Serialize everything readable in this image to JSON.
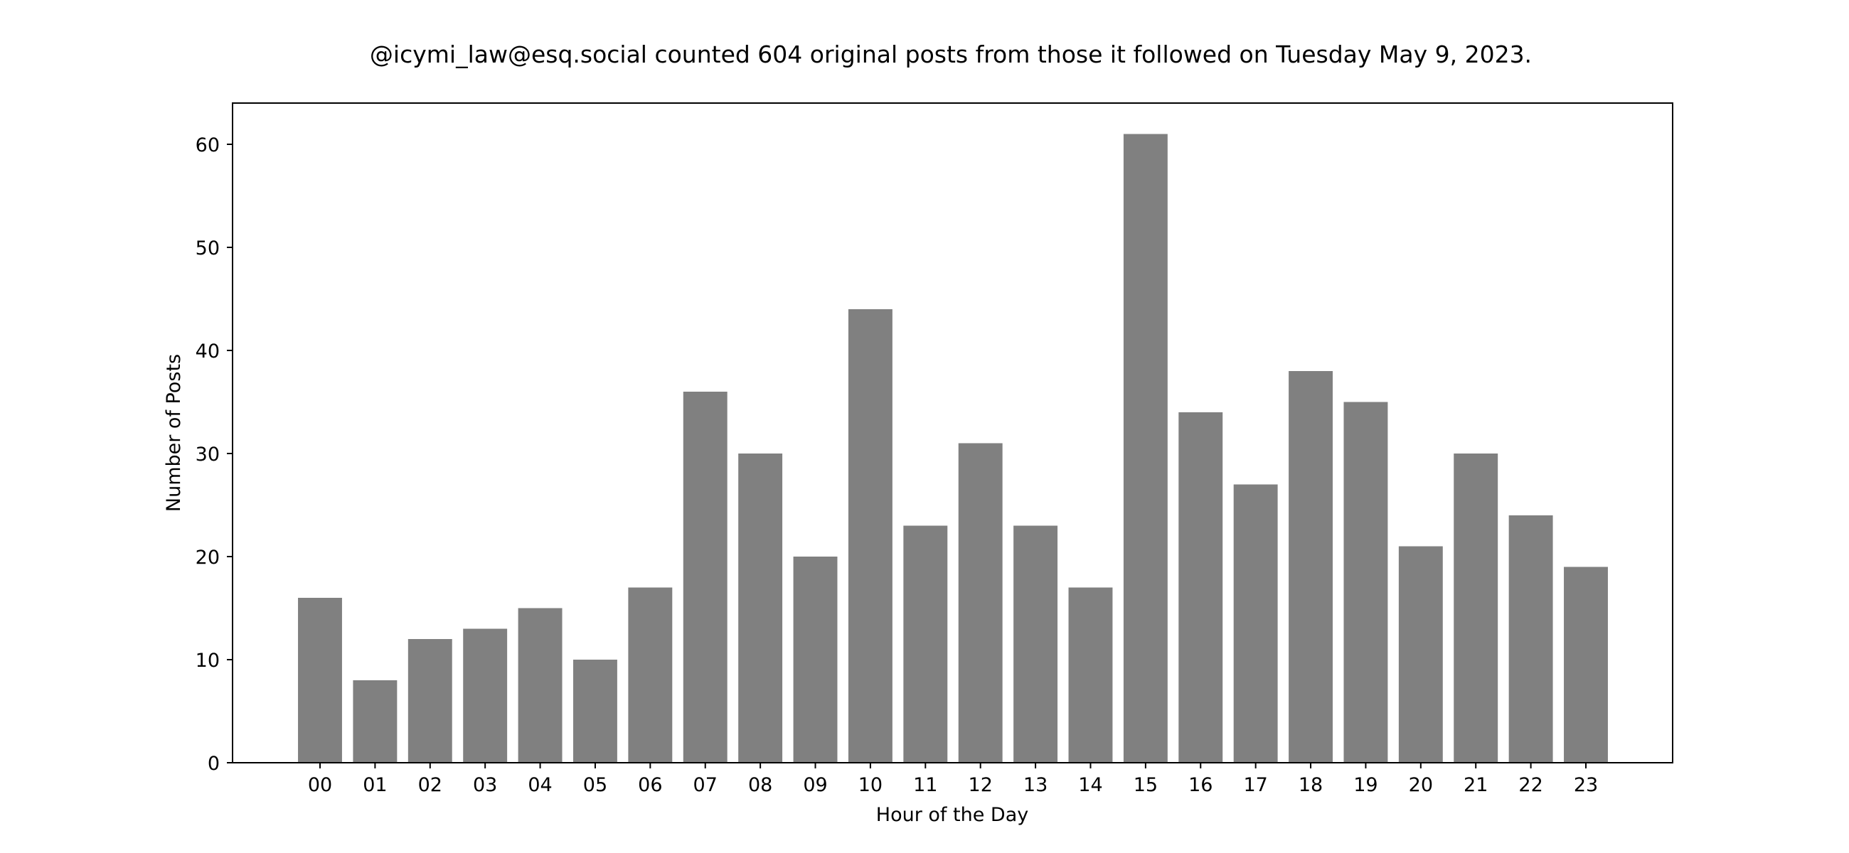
{
  "chart_data": {
    "type": "bar",
    "title": "@icymi_law@esq.social counted 604 original posts from those it followed on Tuesday May 9, 2023.",
    "xlabel": "Hour of the Day",
    "ylabel": "Number of Posts",
    "categories": [
      "00",
      "01",
      "02",
      "03",
      "04",
      "05",
      "06",
      "07",
      "08",
      "09",
      "10",
      "11",
      "12",
      "13",
      "14",
      "15",
      "16",
      "17",
      "18",
      "19",
      "20",
      "21",
      "22",
      "23"
    ],
    "values": [
      16,
      8,
      12,
      13,
      15,
      10,
      17,
      36,
      30,
      20,
      44,
      23,
      31,
      23,
      17,
      61,
      34,
      27,
      38,
      35,
      21,
      30,
      24,
      19
    ],
    "ylim": [
      0,
      64
    ],
    "yticks": [
      0,
      10,
      20,
      30,
      40,
      50,
      60
    ],
    "bar_color": "#808080",
    "grid": false,
    "legend": "none"
  }
}
